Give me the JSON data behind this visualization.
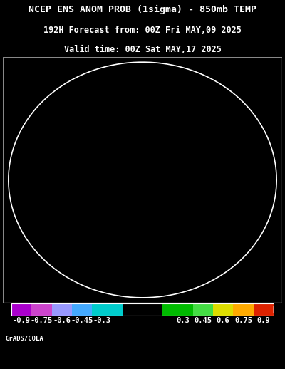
{
  "title_line1": "NCEP ENS ANOM PROB (1sigma) - 850mb TEMP",
  "title_line2": "192H Forecast from: 00Z Fri MAY,09 2025",
  "title_line3": "Valid time: 00Z Sat MAY,17 2025",
  "colorbar_labels": [
    "-0.9",
    "-0.75",
    "-0.6",
    "-0.45",
    "-0.3",
    "0.3",
    "0.45",
    "0.6",
    "0.75",
    "0.9"
  ],
  "colorbar_values": [
    -0.9,
    -0.75,
    -0.6,
    -0.45,
    -0.3,
    0.3,
    0.45,
    0.6,
    0.75,
    0.9
  ],
  "colorbar_colors": [
    "#aa00cc",
    "#cc44cc",
    "#9999ff",
    "#44aaff",
    "#00cccc",
    "#000000",
    "#00bb00",
    "#44dd44",
    "#dddd00",
    "#ffaa00",
    "#dd2200"
  ],
  "colorbar_boundaries": [
    -0.975,
    -0.825,
    -0.675,
    -0.525,
    -0.375,
    -0.15,
    0.15,
    0.375,
    0.525,
    0.675,
    0.825,
    0.975
  ],
  "background_color": "#000000",
  "text_color": "#ffffff",
  "credit_text": "GrADS/COLA",
  "fig_width": 4.0,
  "fig_height": 5.18,
  "title_fontsize": 9.5,
  "subtitle_fontsize": 8.5,
  "colorbar_label_fontsize": 7.5,
  "credit_fontsize": 6.5,
  "map_border_color": "#888888",
  "grid_color": "#ffffff",
  "coast_color": "#ffffff"
}
